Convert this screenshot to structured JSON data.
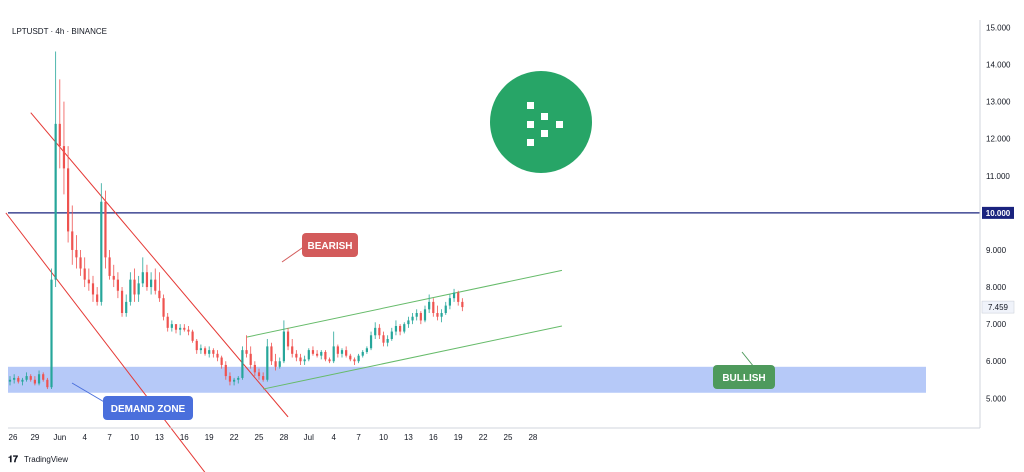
{
  "header": {
    "symbol_line": "LPTUSDT · 4h · BINANCE"
  },
  "footer": {
    "brand": "TradingView"
  },
  "colors": {
    "up": "#26a69a",
    "down": "#ef5350",
    "wick": "#555555",
    "bearish": "#e53935",
    "bullish": "#4caf50",
    "demand": "#6d8ff0",
    "level": "#1a237e",
    "logo": "#27a567"
  },
  "chart_data": {
    "type": "candlestick",
    "title": "LPTUSDT · 4h · BINANCE",
    "xlabel": "",
    "ylabel": "",
    "x_ticks": [
      "26",
      "29",
      "Jun",
      "4",
      "7",
      "10",
      "13",
      "16",
      "19",
      "22",
      "25",
      "28",
      "Jul",
      "4",
      "7",
      "10",
      "13",
      "16",
      "19",
      "22",
      "25",
      "28"
    ],
    "y_ticks": [
      "5.000",
      "6.000",
      "7.000",
      "8.000",
      "9.000",
      "10.000",
      "11.000",
      "12.000",
      "13.000",
      "14.000",
      "15.000"
    ],
    "ylim": [
      4.2,
      15.2
    ],
    "x_range_days": [
      0,
      66
    ],
    "current_price": "7.459",
    "key_level": {
      "value": 10.0,
      "label": "10.000"
    },
    "annotations": [
      {
        "text": "BEARISH",
        "color": "#d35b5b"
      },
      {
        "text": "BULLISH",
        "color": "#4e9a5c"
      },
      {
        "text": "DEMAND ZONE",
        "color": "#4a6fdc"
      }
    ],
    "demand_zone": {
      "low": 5.15,
      "high": 5.85
    },
    "bearish_channel": {
      "upper": [
        [
          2.5,
          12.7
        ],
        [
          33.5,
          4.5
        ]
      ],
      "lower": [
        [
          -0.5,
          10.0
        ],
        [
          23.5,
          3.0
        ]
      ]
    },
    "bullish_channel": {
      "upper": [
        [
          28.5,
          6.65
        ],
        [
          66.5,
          8.45
        ]
      ],
      "lower": [
        [
          30.5,
          5.25
        ],
        [
          66.5,
          6.95
        ]
      ]
    },
    "series": [
      {
        "ohlc": [
          [
            0.0,
            5.45,
            5.6,
            5.35,
            5.5
          ],
          [
            0.5,
            5.5,
            5.65,
            5.4,
            5.55
          ],
          [
            1.0,
            5.55,
            5.6,
            5.4,
            5.45
          ],
          [
            1.5,
            5.45,
            5.55,
            5.35,
            5.5
          ],
          [
            2.0,
            5.5,
            5.7,
            5.45,
            5.6
          ],
          [
            2.5,
            5.6,
            5.65,
            5.45,
            5.5
          ],
          [
            3.0,
            5.5,
            5.6,
            5.35,
            5.4
          ],
          [
            3.5,
            5.4,
            5.75,
            5.35,
            5.65
          ],
          [
            4.0,
            5.65,
            5.7,
            5.45,
            5.5
          ],
          [
            4.5,
            5.5,
            5.55,
            5.25,
            5.3
          ],
          [
            5.0,
            5.3,
            8.5,
            5.25,
            8.2
          ],
          [
            5.5,
            8.2,
            14.35,
            8.0,
            12.4
          ],
          [
            6.0,
            12.4,
            13.6,
            11.2,
            11.8
          ],
          [
            6.5,
            11.8,
            13.0,
            10.5,
            11.2
          ],
          [
            7.0,
            11.2,
            11.8,
            9.2,
            9.5
          ],
          [
            7.5,
            9.5,
            10.2,
            8.6,
            9.0
          ],
          [
            8.0,
            9.0,
            9.4,
            8.5,
            8.8
          ],
          [
            8.5,
            8.8,
            9.0,
            8.3,
            8.5
          ],
          [
            9.0,
            8.5,
            8.8,
            8.0,
            8.2
          ],
          [
            9.5,
            8.2,
            8.5,
            7.9,
            8.1
          ],
          [
            10.0,
            8.1,
            8.3,
            7.6,
            7.8
          ],
          [
            10.5,
            7.8,
            8.0,
            7.5,
            7.6
          ],
          [
            11.0,
            7.6,
            10.8,
            7.5,
            10.3
          ],
          [
            11.5,
            10.3,
            10.6,
            8.5,
            8.8
          ],
          [
            12.0,
            8.8,
            9.0,
            8.2,
            8.3
          ],
          [
            12.5,
            8.3,
            8.6,
            8.0,
            8.2
          ],
          [
            13.0,
            8.2,
            8.4,
            7.7,
            7.9
          ],
          [
            13.5,
            7.9,
            8.0,
            7.2,
            7.3
          ],
          [
            14.0,
            7.3,
            7.8,
            7.2,
            7.6
          ],
          [
            14.5,
            7.6,
            8.4,
            7.5,
            8.2
          ],
          [
            15.0,
            8.2,
            8.5,
            7.6,
            7.8
          ],
          [
            15.5,
            7.8,
            8.3,
            7.6,
            8.1
          ],
          [
            16.0,
            8.1,
            8.8,
            8.0,
            8.4
          ],
          [
            16.5,
            8.4,
            8.6,
            7.9,
            8.0
          ],
          [
            17.0,
            8.0,
            8.4,
            7.8,
            8.2
          ],
          [
            17.5,
            8.2,
            8.5,
            7.8,
            7.9
          ],
          [
            18.0,
            7.9,
            8.4,
            7.6,
            7.7
          ],
          [
            18.5,
            7.7,
            7.8,
            7.1,
            7.2
          ],
          [
            19.0,
            7.2,
            7.3,
            6.8,
            6.9
          ],
          [
            19.5,
            6.9,
            7.1,
            6.8,
            7.0
          ],
          [
            20.0,
            7.0,
            7.0,
            6.75,
            6.85
          ],
          [
            20.5,
            6.85,
            7.0,
            6.7,
            6.9
          ],
          [
            21.0,
            6.9,
            7.0,
            6.8,
            6.85
          ],
          [
            21.5,
            6.85,
            6.95,
            6.7,
            6.8
          ],
          [
            22.0,
            6.8,
            6.85,
            6.5,
            6.55
          ],
          [
            22.5,
            6.55,
            6.6,
            6.2,
            6.3
          ],
          [
            23.0,
            6.3,
            6.45,
            6.2,
            6.35
          ],
          [
            23.5,
            6.35,
            6.4,
            6.15,
            6.2
          ],
          [
            24.0,
            6.2,
            6.4,
            6.1,
            6.3
          ],
          [
            24.5,
            6.3,
            6.35,
            6.1,
            6.2
          ],
          [
            25.0,
            6.2,
            6.3,
            6.0,
            6.1
          ],
          [
            25.5,
            6.1,
            6.15,
            5.8,
            5.9
          ],
          [
            26.0,
            5.9,
            6.0,
            5.5,
            5.6
          ],
          [
            26.5,
            5.6,
            5.7,
            5.35,
            5.45
          ],
          [
            27.0,
            5.45,
            5.55,
            5.35,
            5.5
          ],
          [
            27.5,
            5.5,
            5.6,
            5.4,
            5.55
          ],
          [
            28.0,
            5.55,
            6.4,
            5.5,
            6.3
          ],
          [
            28.5,
            6.3,
            6.7,
            6.1,
            6.2
          ],
          [
            29.0,
            6.2,
            6.4,
            5.8,
            5.9
          ],
          [
            29.5,
            5.9,
            6.0,
            5.6,
            5.7
          ],
          [
            30.0,
            5.7,
            5.8,
            5.5,
            5.6
          ],
          [
            30.5,
            5.6,
            5.7,
            5.45,
            5.5
          ],
          [
            31.0,
            5.5,
            6.6,
            5.45,
            6.4
          ],
          [
            31.5,
            6.4,
            6.5,
            5.9,
            6.0
          ],
          [
            32.0,
            6.0,
            6.2,
            5.75,
            5.85
          ],
          [
            32.5,
            5.85,
            6.1,
            5.8,
            6.0
          ],
          [
            33.0,
            6.0,
            7.1,
            5.95,
            6.8
          ],
          [
            33.5,
            6.8,
            6.9,
            6.3,
            6.4
          ],
          [
            34.0,
            6.4,
            6.6,
            6.1,
            6.2
          ],
          [
            34.5,
            6.2,
            6.3,
            6.0,
            6.1
          ],
          [
            35.0,
            6.1,
            6.2,
            5.9,
            6.0
          ],
          [
            35.5,
            6.0,
            6.15,
            5.9,
            6.05
          ],
          [
            36.0,
            6.05,
            6.35,
            6.0,
            6.3
          ],
          [
            36.5,
            6.3,
            6.4,
            6.15,
            6.2
          ],
          [
            37.0,
            6.2,
            6.3,
            6.1,
            6.15
          ],
          [
            37.5,
            6.15,
            6.3,
            6.05,
            6.25
          ],
          [
            38.0,
            6.25,
            6.3,
            6.0,
            6.05
          ],
          [
            38.5,
            6.05,
            6.1,
            5.95,
            6.0
          ],
          [
            39.0,
            6.0,
            6.8,
            5.95,
            6.4
          ],
          [
            39.5,
            6.4,
            6.45,
            6.1,
            6.2
          ],
          [
            40.0,
            6.2,
            6.35,
            6.1,
            6.3
          ],
          [
            40.5,
            6.3,
            6.4,
            6.1,
            6.15
          ],
          [
            41.0,
            6.15,
            6.2,
            6.0,
            6.05
          ],
          [
            41.5,
            6.05,
            6.1,
            5.9,
            6.0
          ],
          [
            42.0,
            6.0,
            6.2,
            5.95,
            6.15
          ],
          [
            42.5,
            6.15,
            6.3,
            6.1,
            6.25
          ],
          [
            43.0,
            6.25,
            6.4,
            6.2,
            6.35
          ],
          [
            43.5,
            6.35,
            6.8,
            6.3,
            6.7
          ],
          [
            44.0,
            6.7,
            7.05,
            6.6,
            6.9
          ],
          [
            44.5,
            6.9,
            7.0,
            6.6,
            6.7
          ],
          [
            45.0,
            6.7,
            6.8,
            6.4,
            6.5
          ],
          [
            45.5,
            6.5,
            6.7,
            6.4,
            6.6
          ],
          [
            46.0,
            6.6,
            6.9,
            6.55,
            6.8
          ],
          [
            46.5,
            6.8,
            7.1,
            6.7,
            6.95
          ],
          [
            47.0,
            6.95,
            7.0,
            6.7,
            6.8
          ],
          [
            47.5,
            6.8,
            7.05,
            6.75,
            7.0
          ],
          [
            48.0,
            7.0,
            7.2,
            6.9,
            7.1
          ],
          [
            48.5,
            7.1,
            7.3,
            7.0,
            7.2
          ],
          [
            49.0,
            7.2,
            7.4,
            7.1,
            7.3
          ],
          [
            49.5,
            7.3,
            7.35,
            7.0,
            7.1
          ],
          [
            50.0,
            7.1,
            7.5,
            7.05,
            7.4
          ],
          [
            50.5,
            7.4,
            7.8,
            7.3,
            7.6
          ],
          [
            51.0,
            7.6,
            7.7,
            7.2,
            7.3
          ],
          [
            51.5,
            7.3,
            7.5,
            7.1,
            7.2
          ],
          [
            52.0,
            7.2,
            7.4,
            7.05,
            7.3
          ],
          [
            52.5,
            7.3,
            7.6,
            7.25,
            7.5
          ],
          [
            53.0,
            7.5,
            7.8,
            7.4,
            7.7
          ],
          [
            53.5,
            7.7,
            7.95,
            7.6,
            7.85
          ],
          [
            54.0,
            7.85,
            7.9,
            7.5,
            7.6
          ],
          [
            54.5,
            7.6,
            7.7,
            7.35,
            7.46
          ]
        ]
      }
    ]
  }
}
